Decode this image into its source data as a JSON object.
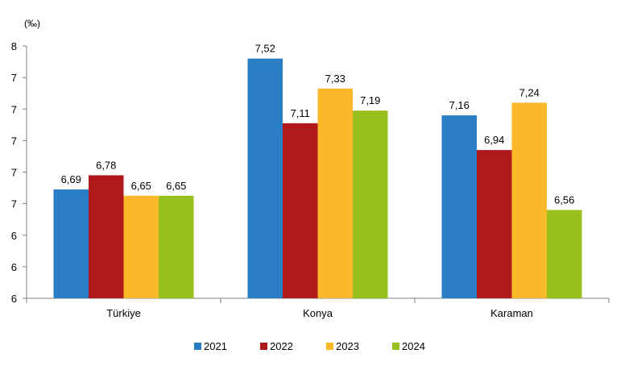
{
  "chart_data": {
    "type": "bar",
    "title": "",
    "unit_label": "(‰)",
    "xlabel": "",
    "ylabel": "",
    "ylim": [
      6.0,
      7.6
    ],
    "y_tick_values": [
      6.0,
      6.2,
      6.4,
      6.6,
      6.8,
      7.0,
      7.2,
      7.4,
      7.6
    ],
    "y_tick_labels": [
      "6",
      "6",
      "6",
      "7",
      "7",
      "7",
      "7",
      "7",
      "8"
    ],
    "categories": [
      "Türkiye",
      "Konya",
      "Karaman"
    ],
    "series": [
      {
        "name": "2021",
        "color": "#2A7EC6",
        "values": [
          6.69,
          7.52,
          7.16
        ],
        "labels": [
          "6,69",
          "7,52",
          "7,16"
        ]
      },
      {
        "name": "2022",
        "color": "#B0191C",
        "values": [
          6.78,
          7.11,
          6.94
        ],
        "labels": [
          "6,78",
          "7,11",
          "6,94"
        ]
      },
      {
        "name": "2023",
        "color": "#FBB829",
        "values": [
          6.65,
          7.33,
          7.24
        ],
        "labels": [
          "6,65",
          "7,33",
          "7,24"
        ]
      },
      {
        "name": "2024",
        "color": "#98C11D",
        "values": [
          6.65,
          7.19,
          6.56
        ],
        "labels": [
          "6,65",
          "7,19",
          "6,56"
        ]
      }
    ],
    "legend_position": "bottom",
    "grid": false
  }
}
